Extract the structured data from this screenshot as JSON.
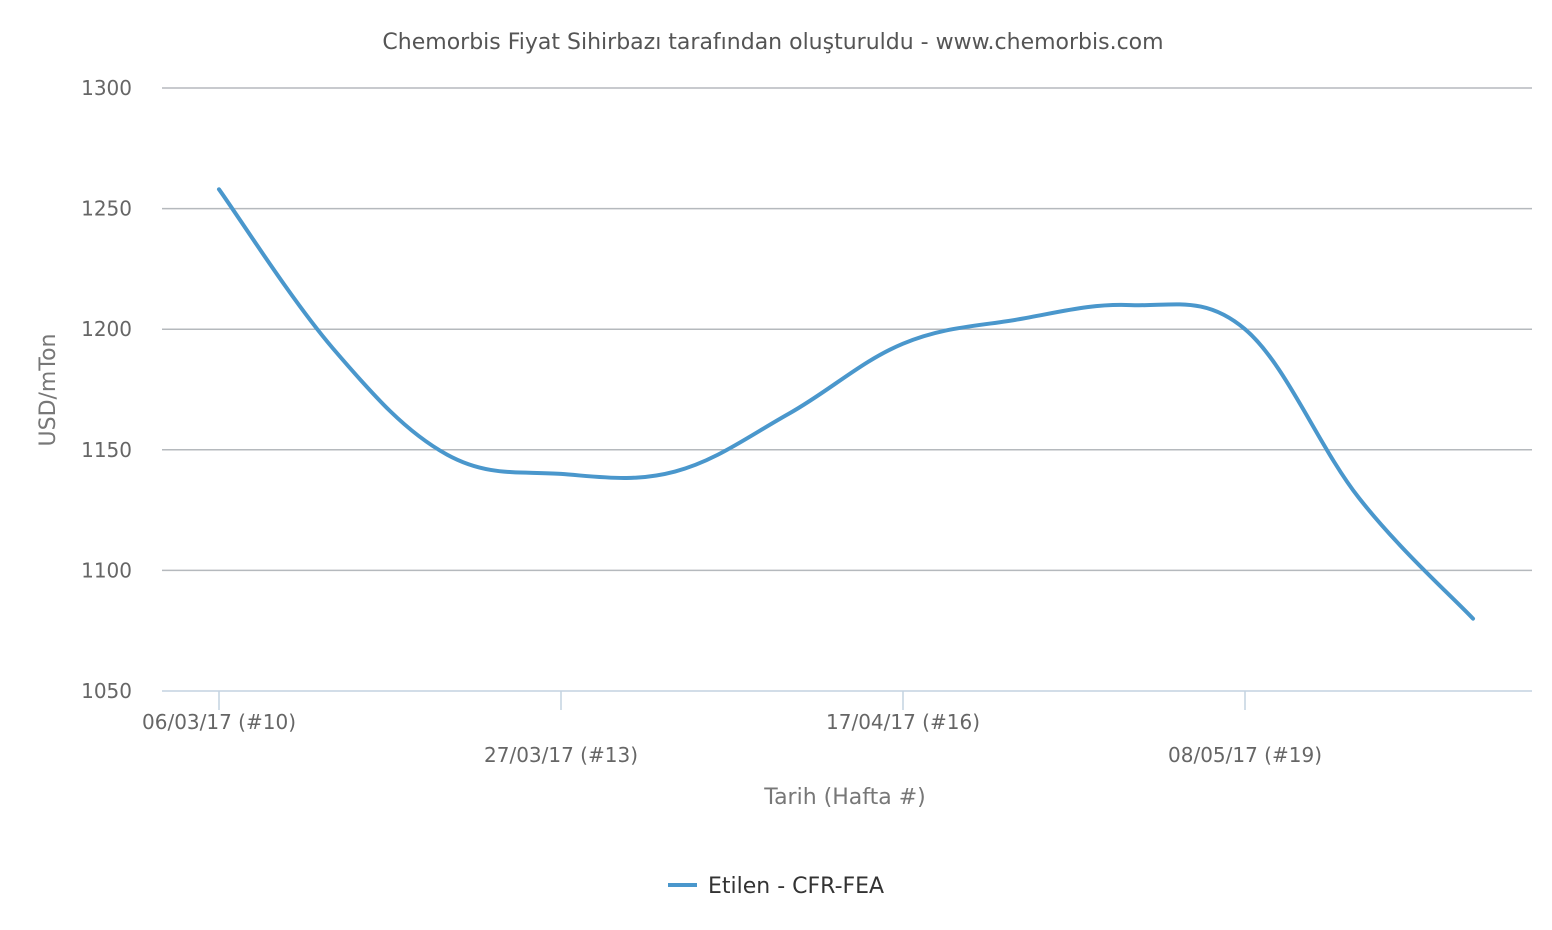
{
  "chart_data": {
    "type": "line",
    "title": "Chemorbis Fiyat Sihirbazı tarafından oluşturuldu - www.chemorbis.com",
    "xlabel": "Tarih (Hafta #)",
    "ylabel": "USD/mTon",
    "ylim": [
      1050,
      1300
    ],
    "yticks": [
      1050,
      1100,
      1150,
      1200,
      1250,
      1300
    ],
    "grid": true,
    "legend_position": "bottom-center",
    "x_ticks": [
      {
        "week": 10,
        "label": "06/03/17 (#10)"
      },
      {
        "week": 13,
        "label": "27/03/17 (#13)"
      },
      {
        "week": 16,
        "label": "17/04/17 (#16)"
      },
      {
        "week": 19,
        "label": "08/05/17 (#19)"
      }
    ],
    "x": [
      10,
      11,
      12,
      13,
      14,
      15,
      16,
      17,
      18,
      19,
      20,
      21
    ],
    "series": [
      {
        "name": "Etilen - CFR-FEA",
        "color": "#4a97cc",
        "values": [
          1258,
          1192,
          1148,
          1140,
          1141,
          1165,
          1194,
          1204,
          1210,
          1200,
          1130,
          1080
        ]
      }
    ]
  }
}
